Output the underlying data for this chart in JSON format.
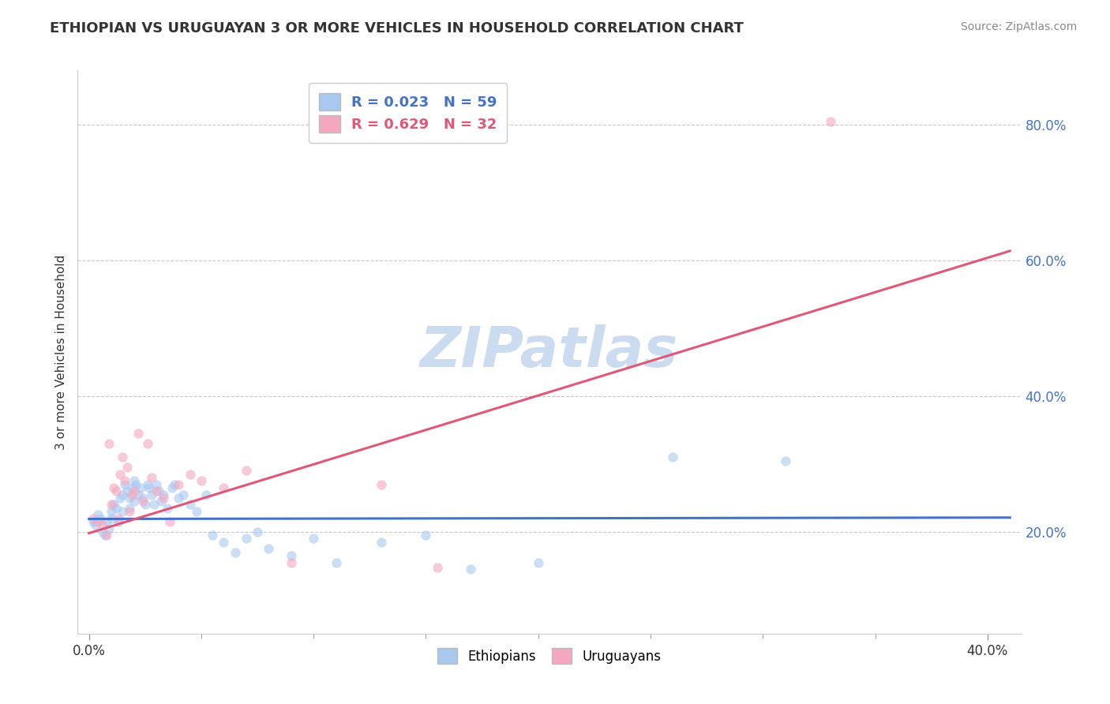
{
  "title": "ETHIOPIAN VS URUGUAYAN 3 OR MORE VEHICLES IN HOUSEHOLD CORRELATION CHART",
  "source": "Source: ZipAtlas.com",
  "ylabel": "3 or more Vehicles in Household",
  "xlim": [
    -0.005,
    0.415
  ],
  "ylim": [
    0.05,
    0.88
  ],
  "ytick_labels": [
    "20.0%",
    "40.0%",
    "60.0%",
    "80.0%"
  ],
  "ytick_positions": [
    0.2,
    0.4,
    0.6,
    0.8
  ],
  "watermark": "ZIPatlas",
  "legend_entries": [
    {
      "label": "R = 0.023   N = 59",
      "color": "#a8c8f0"
    },
    {
      "label": "R = 0.629   N = 32",
      "color": "#f4a8c0"
    }
  ],
  "ethiopian_scatter_x": [
    0.002,
    0.003,
    0.004,
    0.005,
    0.006,
    0.007,
    0.008,
    0.009,
    0.01,
    0.01,
    0.011,
    0.012,
    0.013,
    0.014,
    0.015,
    0.015,
    0.016,
    0.017,
    0.018,
    0.018,
    0.019,
    0.02,
    0.02,
    0.021,
    0.022,
    0.023,
    0.024,
    0.025,
    0.026,
    0.027,
    0.028,
    0.029,
    0.03,
    0.031,
    0.032,
    0.033,
    0.035,
    0.037,
    0.038,
    0.04,
    0.042,
    0.045,
    0.048,
    0.052,
    0.055,
    0.06,
    0.065,
    0.07,
    0.075,
    0.08,
    0.09,
    0.1,
    0.11,
    0.13,
    0.15,
    0.17,
    0.2,
    0.26,
    0.31
  ],
  "ethiopian_scatter_y": [
    0.215,
    0.21,
    0.225,
    0.22,
    0.2,
    0.195,
    0.215,
    0.205,
    0.23,
    0.22,
    0.24,
    0.235,
    0.215,
    0.25,
    0.255,
    0.23,
    0.27,
    0.26,
    0.25,
    0.235,
    0.265,
    0.275,
    0.245,
    0.27,
    0.255,
    0.265,
    0.25,
    0.24,
    0.27,
    0.265,
    0.255,
    0.24,
    0.27,
    0.26,
    0.245,
    0.255,
    0.235,
    0.265,
    0.27,
    0.25,
    0.255,
    0.24,
    0.23,
    0.255,
    0.195,
    0.185,
    0.17,
    0.19,
    0.2,
    0.175,
    0.165,
    0.19,
    0.155,
    0.185,
    0.195,
    0.145,
    0.155,
    0.31,
    0.305
  ],
  "uruguayan_scatter_x": [
    0.002,
    0.004,
    0.006,
    0.008,
    0.009,
    0.01,
    0.011,
    0.012,
    0.013,
    0.014,
    0.015,
    0.016,
    0.017,
    0.018,
    0.019,
    0.02,
    0.022,
    0.024,
    0.026,
    0.028,
    0.03,
    0.033,
    0.036,
    0.04,
    0.045,
    0.05,
    0.06,
    0.07,
    0.09,
    0.13,
    0.155,
    0.33
  ],
  "uruguayan_scatter_y": [
    0.22,
    0.215,
    0.21,
    0.195,
    0.33,
    0.24,
    0.265,
    0.26,
    0.22,
    0.285,
    0.31,
    0.275,
    0.295,
    0.23,
    0.255,
    0.26,
    0.345,
    0.245,
    0.33,
    0.28,
    0.26,
    0.25,
    0.215,
    0.27,
    0.285,
    0.275,
    0.265,
    0.29,
    0.155,
    0.27,
    0.148,
    0.805
  ],
  "ethiopian_line_x": [
    0.0,
    0.41
  ],
  "ethiopian_line_y": [
    0.219,
    0.221
  ],
  "uruguayan_line_x": [
    0.0,
    0.41
  ],
  "uruguayan_line_y": [
    0.198,
    0.614
  ],
  "scatter_color_ethiopian": "#a8c8f0",
  "scatter_color_uruguayan": "#f4a8c0",
  "line_color_ethiopian": "#4472c4",
  "line_color_uruguayan": "#e05878",
  "background_color": "#ffffff",
  "plot_bg_color": "#ffffff",
  "grid_color": "#c8c8c8",
  "title_fontsize": 13,
  "axis_label_fontsize": 11,
  "tick_fontsize": 12,
  "source_fontsize": 10,
  "watermark_fontsize": 52,
  "watermark_color": "#ccdcf0",
  "scatter_size": 80,
  "scatter_alpha": 0.6,
  "line_width": 2.2
}
